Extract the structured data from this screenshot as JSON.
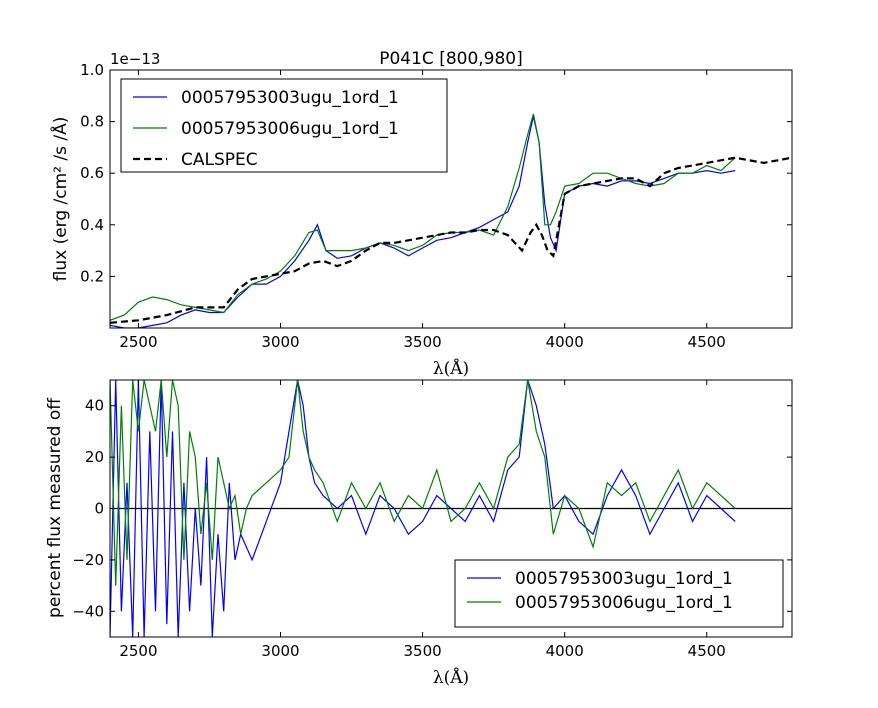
{
  "chart_data": [
    {
      "type": "line",
      "title": "P041C [800,980]",
      "offset_text": "1e−13",
      "xlabel": "λ(Å)",
      "ylabel": "flux (erg /cm²  /s /Å)",
      "xlim": [
        2400,
        4800
      ],
      "ylim": [
        0.0,
        1.0
      ],
      "xticks": [
        2500,
        3000,
        3500,
        4000,
        4500
      ],
      "xtick_labels": [
        "2500",
        "3000",
        "3500",
        "4000",
        "4500"
      ],
      "yticks": [
        0.2,
        0.4,
        0.6,
        0.8,
        1.0
      ],
      "ytick_labels": [
        "0.2",
        "0.4",
        "0.6",
        "0.8",
        "1.0"
      ],
      "legend_position": "upper-left",
      "series": [
        {
          "name": "00057953003ugu_1ord_1",
          "color": "#0000ff",
          "style": "solid",
          "x": [
            2400,
            2450,
            2500,
            2550,
            2600,
            2650,
            2700,
            2750,
            2800,
            2850,
            2900,
            2950,
            3000,
            3050,
            3100,
            3130,
            3160,
            3200,
            3250,
            3300,
            3350,
            3400,
            3450,
            3500,
            3550,
            3600,
            3650,
            3700,
            3750,
            3800,
            3840,
            3870,
            3890,
            3910,
            3930,
            3950,
            3970,
            4000,
            4050,
            4100,
            4150,
            4200,
            4250,
            4300,
            4350,
            4400,
            4450,
            4500,
            4550,
            4600
          ],
          "y": [
            0.01,
            0.0,
            0.0,
            0.01,
            0.02,
            0.05,
            0.07,
            0.06,
            0.06,
            0.12,
            0.17,
            0.17,
            0.2,
            0.26,
            0.34,
            0.4,
            0.3,
            0.27,
            0.28,
            0.31,
            0.33,
            0.31,
            0.28,
            0.31,
            0.34,
            0.35,
            0.37,
            0.39,
            0.42,
            0.45,
            0.55,
            0.72,
            0.82,
            0.72,
            0.48,
            0.35,
            0.3,
            0.52,
            0.55,
            0.56,
            0.55,
            0.57,
            0.57,
            0.56,
            0.58,
            0.6,
            0.6,
            0.61,
            0.6,
            0.61
          ]
        },
        {
          "name": "00057953006ugu_1ord_1",
          "color": "#008000",
          "style": "solid",
          "x": [
            2400,
            2450,
            2500,
            2550,
            2600,
            2650,
            2700,
            2750,
            2800,
            2850,
            2900,
            2950,
            3000,
            3050,
            3100,
            3130,
            3160,
            3200,
            3250,
            3300,
            3350,
            3400,
            3450,
            3500,
            3550,
            3600,
            3650,
            3700,
            3750,
            3800,
            3840,
            3870,
            3890,
            3910,
            3930,
            3950,
            3970,
            4000,
            4050,
            4100,
            4150,
            4200,
            4250,
            4300,
            4350,
            4400,
            4450,
            4500,
            4550,
            4600
          ],
          "y": [
            0.03,
            0.05,
            0.1,
            0.12,
            0.11,
            0.09,
            0.08,
            0.07,
            0.06,
            0.13,
            0.17,
            0.19,
            0.22,
            0.28,
            0.37,
            0.38,
            0.3,
            0.3,
            0.3,
            0.31,
            0.33,
            0.32,
            0.3,
            0.32,
            0.36,
            0.37,
            0.37,
            0.38,
            0.36,
            0.47,
            0.62,
            0.75,
            0.83,
            0.72,
            0.4,
            0.4,
            0.45,
            0.55,
            0.56,
            0.6,
            0.6,
            0.58,
            0.56,
            0.55,
            0.56,
            0.6,
            0.6,
            0.63,
            0.61,
            0.66
          ]
        },
        {
          "name": "CALSPEC",
          "color": "#000000",
          "style": "dashed",
          "x": [
            2400,
            2500,
            2600,
            2700,
            2800,
            2850,
            2900,
            2950,
            3000,
            3050,
            3100,
            3150,
            3200,
            3250,
            3300,
            3350,
            3400,
            3450,
            3500,
            3550,
            3600,
            3650,
            3700,
            3750,
            3800,
            3850,
            3880,
            3900,
            3920,
            3940,
            3960,
            3980,
            4000,
            4050,
            4100,
            4150,
            4200,
            4250,
            4300,
            4350,
            4400,
            4450,
            4500,
            4550,
            4600,
            4650,
            4700,
            4750,
            4800
          ],
          "y": [
            0.02,
            0.03,
            0.05,
            0.08,
            0.08,
            0.15,
            0.19,
            0.2,
            0.21,
            0.22,
            0.25,
            0.26,
            0.24,
            0.26,
            0.3,
            0.33,
            0.33,
            0.34,
            0.35,
            0.36,
            0.37,
            0.37,
            0.38,
            0.38,
            0.36,
            0.3,
            0.37,
            0.4,
            0.36,
            0.3,
            0.28,
            0.4,
            0.52,
            0.55,
            0.56,
            0.57,
            0.58,
            0.58,
            0.55,
            0.6,
            0.62,
            0.63,
            0.64,
            0.65,
            0.66,
            0.65,
            0.64,
            0.65,
            0.66
          ]
        }
      ]
    },
    {
      "type": "line",
      "xlabel": "λ(Å)",
      "ylabel": "percent flux measured off",
      "xlim": [
        2400,
        4800
      ],
      "ylim": [
        -50,
        50
      ],
      "xticks": [
        2500,
        3000,
        3500,
        4000,
        4500
      ],
      "xtick_labels": [
        "2500",
        "3000",
        "3500",
        "4000",
        "4500"
      ],
      "yticks": [
        -40,
        -20,
        0,
        20,
        40
      ],
      "ytick_labels": [
        "−40",
        "−20",
        "0",
        "20",
        "40"
      ],
      "zero_line": true,
      "legend_position": "lower-right",
      "series": [
        {
          "name": "00057953003ugu_1ord_1",
          "color": "#0000ff",
          "x": [
            2400,
            2420,
            2440,
            2460,
            2480,
            2500,
            2520,
            2540,
            2560,
            2580,
            2600,
            2620,
            2640,
            2660,
            2680,
            2700,
            2720,
            2740,
            2760,
            2780,
            2800,
            2820,
            2840,
            2860,
            2880,
            2900,
            2950,
            3000,
            3030,
            3060,
            3080,
            3100,
            3120,
            3150,
            3200,
            3250,
            3300,
            3350,
            3400,
            3450,
            3500,
            3550,
            3600,
            3650,
            3700,
            3750,
            3800,
            3840,
            3870,
            3900,
            3930,
            3960,
            4000,
            4050,
            4100,
            4150,
            4200,
            4250,
            4300,
            4350,
            4400,
            4450,
            4500,
            4550,
            4600
          ],
          "y": [
            -50,
            50,
            -40,
            10,
            -50,
            50,
            -50,
            30,
            -40,
            50,
            -45,
            30,
            -50,
            10,
            -40,
            0,
            -30,
            20,
            -50,
            -10,
            -40,
            10,
            -20,
            -10,
            -15,
            -20,
            -5,
            10,
            30,
            50,
            40,
            20,
            10,
            5,
            0,
            5,
            -10,
            5,
            0,
            -10,
            -5,
            5,
            0,
            -5,
            5,
            -5,
            15,
            20,
            50,
            40,
            25,
            0,
            5,
            -5,
            -10,
            5,
            15,
            5,
            -10,
            0,
            10,
            -5,
            5,
            0,
            -5
          ]
        },
        {
          "name": "00057953006ugu_1ord_1",
          "color": "#008000",
          "x": [
            2400,
            2420,
            2440,
            2460,
            2480,
            2500,
            2520,
            2540,
            2560,
            2580,
            2600,
            2620,
            2640,
            2660,
            2680,
            2700,
            2720,
            2740,
            2760,
            2780,
            2800,
            2820,
            2840,
            2860,
            2880,
            2900,
            2950,
            3000,
            3030,
            3060,
            3080,
            3100,
            3120,
            3150,
            3200,
            3250,
            3300,
            3350,
            3400,
            3450,
            3500,
            3550,
            3600,
            3650,
            3700,
            3750,
            3800,
            3840,
            3870,
            3900,
            3930,
            3960,
            4000,
            4050,
            4100,
            4150,
            4200,
            4250,
            4300,
            4350,
            4400,
            4450,
            4500,
            4550,
            4600
          ],
          "y": [
            50,
            -30,
            40,
            -20,
            50,
            30,
            50,
            40,
            30,
            50,
            20,
            50,
            40,
            -20,
            30,
            20,
            -10,
            10,
            -20,
            20,
            10,
            0,
            5,
            -10,
            0,
            5,
            10,
            15,
            20,
            50,
            30,
            20,
            15,
            10,
            -5,
            10,
            0,
            10,
            -5,
            5,
            0,
            15,
            -5,
            0,
            10,
            0,
            20,
            25,
            50,
            30,
            20,
            -10,
            5,
            0,
            -15,
            10,
            5,
            10,
            -5,
            5,
            15,
            0,
            10,
            5,
            0
          ]
        }
      ]
    }
  ]
}
